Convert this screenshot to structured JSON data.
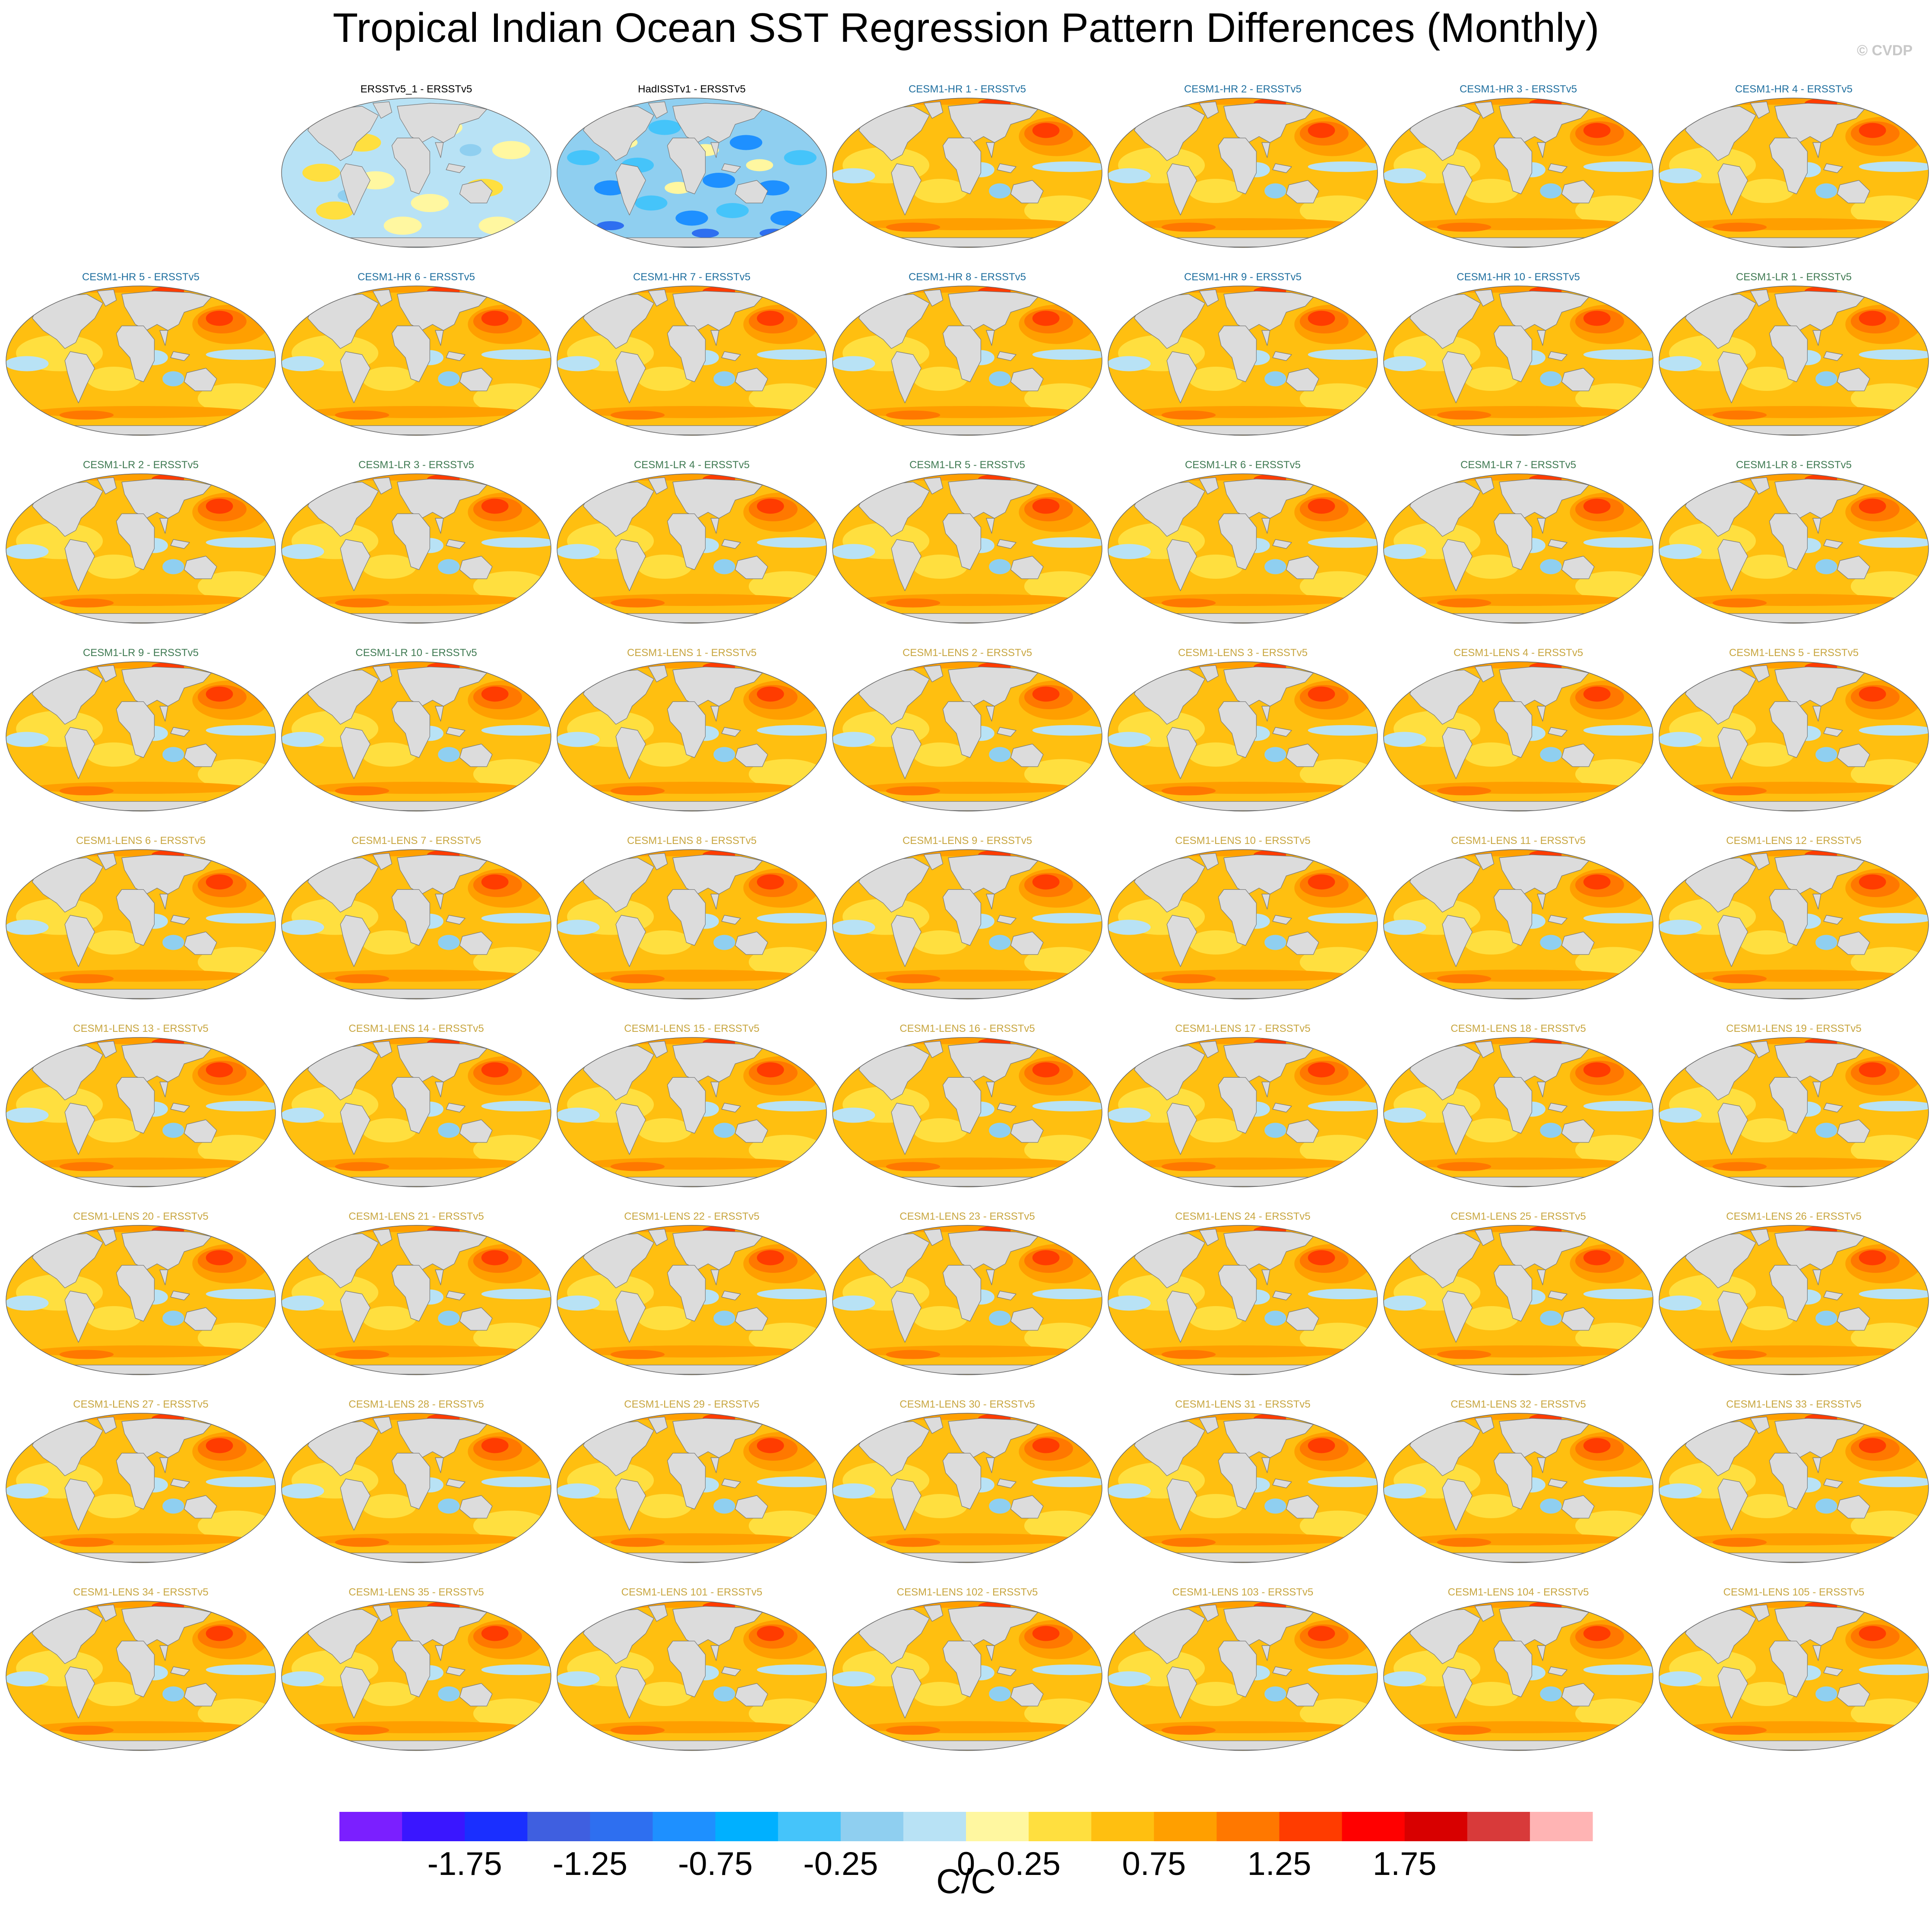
{
  "title": "Tropical Indian Ocean SST Regression Pattern Differences (Monthly)",
  "copyright": "© CVDP",
  "colors": {
    "group_title": {
      "obs": "#000000",
      "hr": "#1f6f9f",
      "lr": "#3f7a52",
      "lens": "#c8a640"
    },
    "land": "#dcdcdc",
    "coast": "#777777"
  },
  "panels": [
    {
      "title": "ERSSTv5_1 - ERSSTv5",
      "group": "obs",
      "pattern": "obs1",
      "row": 0,
      "col": 1
    },
    {
      "title": "HadISSTv1 - ERSSTv5",
      "group": "obs",
      "pattern": "obs2",
      "row": 0,
      "col": 2
    },
    {
      "title": "CESM1-HR 1 - ERSSTv5",
      "group": "hr",
      "pattern": "model",
      "row": 0,
      "col": 3
    },
    {
      "title": "CESM1-HR 2 - ERSSTv5",
      "group": "hr",
      "pattern": "model",
      "row": 0,
      "col": 4
    },
    {
      "title": "CESM1-HR 3 - ERSSTv5",
      "group": "hr",
      "pattern": "model",
      "row": 0,
      "col": 5
    },
    {
      "title": "CESM1-HR 4 - ERSSTv5",
      "group": "hr",
      "pattern": "model",
      "row": 0,
      "col": 6
    },
    {
      "title": "CESM1-HR 5 - ERSSTv5",
      "group": "hr",
      "pattern": "model",
      "row": 1,
      "col": 0
    },
    {
      "title": "CESM1-HR 6 - ERSSTv5",
      "group": "hr",
      "pattern": "model",
      "row": 1,
      "col": 1
    },
    {
      "title": "CESM1-HR 7 - ERSSTv5",
      "group": "hr",
      "pattern": "model",
      "row": 1,
      "col": 2
    },
    {
      "title": "CESM1-HR 8 - ERSSTv5",
      "group": "hr",
      "pattern": "model",
      "row": 1,
      "col": 3
    },
    {
      "title": "CESM1-HR 9 - ERSSTv5",
      "group": "hr",
      "pattern": "model",
      "row": 1,
      "col": 4
    },
    {
      "title": "CESM1-HR 10 - ERSSTv5",
      "group": "hr",
      "pattern": "model",
      "row": 1,
      "col": 5
    },
    {
      "title": "CESM1-LR 1 - ERSSTv5",
      "group": "lr",
      "pattern": "model",
      "row": 1,
      "col": 6
    },
    {
      "title": "CESM1-LR 2 - ERSSTv5",
      "group": "lr",
      "pattern": "model",
      "row": 2,
      "col": 0
    },
    {
      "title": "CESM1-LR 3 - ERSSTv5",
      "group": "lr",
      "pattern": "model",
      "row": 2,
      "col": 1
    },
    {
      "title": "CESM1-LR 4 - ERSSTv5",
      "group": "lr",
      "pattern": "model",
      "row": 2,
      "col": 2
    },
    {
      "title": "CESM1-LR 5 - ERSSTv5",
      "group": "lr",
      "pattern": "model",
      "row": 2,
      "col": 3
    },
    {
      "title": "CESM1-LR 6 - ERSSTv5",
      "group": "lr",
      "pattern": "model",
      "row": 2,
      "col": 4
    },
    {
      "title": "CESM1-LR 7 - ERSSTv5",
      "group": "lr",
      "pattern": "model",
      "row": 2,
      "col": 5
    },
    {
      "title": "CESM1-LR 8 - ERSSTv5",
      "group": "lr",
      "pattern": "model",
      "row": 2,
      "col": 6
    },
    {
      "title": "CESM1-LR 9 - ERSSTv5",
      "group": "lr",
      "pattern": "model",
      "row": 3,
      "col": 0
    },
    {
      "title": "CESM1-LR 10 - ERSSTv5",
      "group": "lr",
      "pattern": "model",
      "row": 3,
      "col": 1
    },
    {
      "title": "CESM1-LENS 1 - ERSSTv5",
      "group": "lens",
      "pattern": "model",
      "row": 3,
      "col": 2
    },
    {
      "title": "CESM1-LENS 2 - ERSSTv5",
      "group": "lens",
      "pattern": "model",
      "row": 3,
      "col": 3
    },
    {
      "title": "CESM1-LENS 3 - ERSSTv5",
      "group": "lens",
      "pattern": "model",
      "row": 3,
      "col": 4
    },
    {
      "title": "CESM1-LENS 4 - ERSSTv5",
      "group": "lens",
      "pattern": "model",
      "row": 3,
      "col": 5
    },
    {
      "title": "CESM1-LENS 5 - ERSSTv5",
      "group": "lens",
      "pattern": "model",
      "row": 3,
      "col": 6
    },
    {
      "title": "CESM1-LENS 6 - ERSSTv5",
      "group": "lens",
      "pattern": "model",
      "row": 4,
      "col": 0
    },
    {
      "title": "CESM1-LENS 7 - ERSSTv5",
      "group": "lens",
      "pattern": "model",
      "row": 4,
      "col": 1
    },
    {
      "title": "CESM1-LENS 8 - ERSSTv5",
      "group": "lens",
      "pattern": "model",
      "row": 4,
      "col": 2
    },
    {
      "title": "CESM1-LENS 9 - ERSSTv5",
      "group": "lens",
      "pattern": "model",
      "row": 4,
      "col": 3
    },
    {
      "title": "CESM1-LENS 10 - ERSSTv5",
      "group": "lens",
      "pattern": "model",
      "row": 4,
      "col": 4
    },
    {
      "title": "CESM1-LENS 11 - ERSSTv5",
      "group": "lens",
      "pattern": "model",
      "row": 4,
      "col": 5
    },
    {
      "title": "CESM1-LENS 12 - ERSSTv5",
      "group": "lens",
      "pattern": "model",
      "row": 4,
      "col": 6
    },
    {
      "title": "CESM1-LENS 13 - ERSSTv5",
      "group": "lens",
      "pattern": "model",
      "row": 5,
      "col": 0
    },
    {
      "title": "CESM1-LENS 14 - ERSSTv5",
      "group": "lens",
      "pattern": "model",
      "row": 5,
      "col": 1
    },
    {
      "title": "CESM1-LENS 15 - ERSSTv5",
      "group": "lens",
      "pattern": "model",
      "row": 5,
      "col": 2
    },
    {
      "title": "CESM1-LENS 16 - ERSSTv5",
      "group": "lens",
      "pattern": "model",
      "row": 5,
      "col": 3
    },
    {
      "title": "CESM1-LENS 17 - ERSSTv5",
      "group": "lens",
      "pattern": "model",
      "row": 5,
      "col": 4
    },
    {
      "title": "CESM1-LENS 18 - ERSSTv5",
      "group": "lens",
      "pattern": "model",
      "row": 5,
      "col": 5
    },
    {
      "title": "CESM1-LENS 19 - ERSSTv5",
      "group": "lens",
      "pattern": "model",
      "row": 5,
      "col": 6
    },
    {
      "title": "CESM1-LENS 20 - ERSSTv5",
      "group": "lens",
      "pattern": "model",
      "row": 6,
      "col": 0
    },
    {
      "title": "CESM1-LENS 21 - ERSSTv5",
      "group": "lens",
      "pattern": "model",
      "row": 6,
      "col": 1
    },
    {
      "title": "CESM1-LENS 22 - ERSSTv5",
      "group": "lens",
      "pattern": "model",
      "row": 6,
      "col": 2
    },
    {
      "title": "CESM1-LENS 23 - ERSSTv5",
      "group": "lens",
      "pattern": "model",
      "row": 6,
      "col": 3
    },
    {
      "title": "CESM1-LENS 24 - ERSSTv5",
      "group": "lens",
      "pattern": "model",
      "row": 6,
      "col": 4
    },
    {
      "title": "CESM1-LENS 25 - ERSSTv5",
      "group": "lens",
      "pattern": "model",
      "row": 6,
      "col": 5
    },
    {
      "title": "CESM1-LENS 26 - ERSSTv5",
      "group": "lens",
      "pattern": "model",
      "row": 6,
      "col": 6
    },
    {
      "title": "CESM1-LENS 27 - ERSSTv5",
      "group": "lens",
      "pattern": "model",
      "row": 7,
      "col": 0
    },
    {
      "title": "CESM1-LENS 28 - ERSSTv5",
      "group": "lens",
      "pattern": "model",
      "row": 7,
      "col": 1
    },
    {
      "title": "CESM1-LENS 29 - ERSSTv5",
      "group": "lens",
      "pattern": "model",
      "row": 7,
      "col": 2
    },
    {
      "title": "CESM1-LENS 30 - ERSSTv5",
      "group": "lens",
      "pattern": "model",
      "row": 7,
      "col": 3
    },
    {
      "title": "CESM1-LENS 31 - ERSSTv5",
      "group": "lens",
      "pattern": "model",
      "row": 7,
      "col": 4
    },
    {
      "title": "CESM1-LENS 32 - ERSSTv5",
      "group": "lens",
      "pattern": "model",
      "row": 7,
      "col": 5
    },
    {
      "title": "CESM1-LENS 33 - ERSSTv5",
      "group": "lens",
      "pattern": "model",
      "row": 7,
      "col": 6
    },
    {
      "title": "CESM1-LENS 34 - ERSSTv5",
      "group": "lens",
      "pattern": "model",
      "row": 8,
      "col": 0
    },
    {
      "title": "CESM1-LENS 35 - ERSSTv5",
      "group": "lens",
      "pattern": "model",
      "row": 8,
      "col": 1
    },
    {
      "title": "CESM1-LENS 101 - ERSSTv5",
      "group": "lens",
      "pattern": "model",
      "row": 8,
      "col": 2
    },
    {
      "title": "CESM1-LENS 102 - ERSSTv5",
      "group": "lens",
      "pattern": "model",
      "row": 8,
      "col": 3
    },
    {
      "title": "CESM1-LENS 103 - ERSSTv5",
      "group": "lens",
      "pattern": "model",
      "row": 8,
      "col": 4
    },
    {
      "title": "CESM1-LENS 104 - ERSSTv5",
      "group": "lens",
      "pattern": "model",
      "row": 8,
      "col": 5
    },
    {
      "title": "CESM1-LENS 105 - ERSSTv5",
      "group": "lens",
      "pattern": "model",
      "row": 8,
      "col": 6
    }
  ],
  "chart_data": {
    "type": "heatmap",
    "title": "Tropical Indian Ocean SST Regression Pattern Differences (Monthly)",
    "units": "C/C",
    "colorbar": {
      "tick_labels": [
        "-1.75",
        "-1.25",
        "-0.75",
        "-0.25",
        "0",
        "0.25",
        "0.75",
        "1.25",
        "1.75"
      ],
      "colors": [
        "#7b1fff",
        "#3a16ff",
        "#1a2fff",
        "#3f5fe0",
        "#2e6ff0",
        "#1e90ff",
        "#00b0ff",
        "#45c4fa",
        "#8fcff0",
        "#b8e2f5",
        "#fff7a0",
        "#ffdf3f",
        "#ffbf10",
        "#ff9f00",
        "#ff7800",
        "#ff3c00",
        "#ff0000",
        "#d80000",
        "#d83a3a",
        "#ffb4b4"
      ]
    },
    "panel_count": 62
  }
}
